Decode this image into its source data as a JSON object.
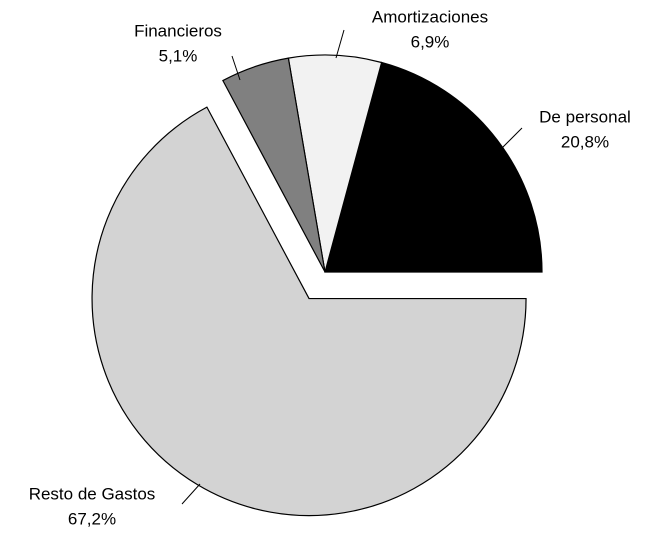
{
  "chart_data": {
    "type": "pie",
    "categories": [
      "De personal",
      "Amortizaciones",
      "Financieros",
      "Resto de Gastos"
    ],
    "values": [
      20.8,
      6.9,
      5.1,
      67.2
    ],
    "value_labels": [
      "20,8%",
      "6,9%",
      "5,1%",
      "67,2%"
    ],
    "colors": [
      "#000000",
      "#f2f2f2",
      "#808080",
      "#d3d3d3"
    ],
    "explode": [
      false,
      false,
      false,
      true
    ]
  }
}
